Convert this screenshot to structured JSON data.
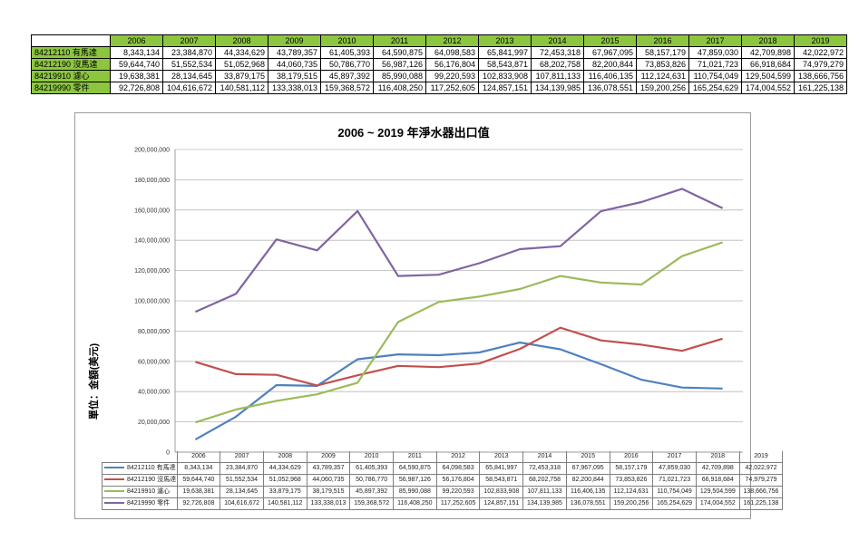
{
  "chart_data": {
    "type": "line",
    "title": "2006 ~ 2019 年淨水器出口值",
    "ylabel": "單位：金額(美元)",
    "xlabel": "",
    "ylim": [
      0,
      200000000
    ],
    "yticks": [
      "200,000,000",
      "180,000,000",
      "160,000,000",
      "140,000,000",
      "120,000,000",
      "100,000,000",
      "80,000,000",
      "60,000,000",
      "40,000,000",
      "20,000,000",
      "0"
    ],
    "grid": true,
    "legend": "data-table-below",
    "categories": [
      "2006",
      "2007",
      "2008",
      "2009",
      "2010",
      "2011",
      "2012",
      "2013",
      "2014",
      "2015",
      "2016",
      "2017",
      "2018",
      "2019"
    ],
    "series": [
      {
        "name": "84212110 有馬達",
        "color": "#4f81bd",
        "values": [
          8343134,
          23384870,
          44334629,
          43789357,
          61405393,
          64590875,
          64098583,
          65841997,
          72453318,
          67967095,
          58157179,
          47859030,
          42709898,
          42022972
        ],
        "labels": [
          "8,343,134",
          "23,384,870",
          "44,334,629",
          "43,789,357",
          "61,405,393",
          "64,590,875",
          "64,098,583",
          "65,841,997",
          "72,453,318",
          "67,967,095",
          "58,157,179",
          "47,859,030",
          "42,709,898",
          "42,022,972"
        ]
      },
      {
        "name": "84212190 沒馬達",
        "color": "#c0504d",
        "values": [
          59644740,
          51552534,
          51052968,
          44060735,
          50786770,
          56987126,
          56176804,
          58543871,
          68202758,
          82200844,
          73853826,
          71021723,
          66918684,
          74979279
        ],
        "labels": [
          "59,644,740",
          "51,552,534",
          "51,052,968",
          "44,060,735",
          "50,786,770",
          "56,987,126",
          "56,176,804",
          "58,543,871",
          "68,202,758",
          "82,200,844",
          "73,853,826",
          "71,021,723",
          "66,918,684",
          "74,979,279"
        ]
      },
      {
        "name": "84219910 濾心",
        "color": "#9bbb59",
        "values": [
          19638381,
          28134645,
          33879175,
          38179515,
          45897392,
          85990088,
          99220593,
          102833908,
          107811133,
          116406135,
          112124631,
          110754049,
          129504599,
          138666756
        ],
        "labels": [
          "19,638,381",
          "28,134,645",
          "33,879,175",
          "38,179,515",
          "45,897,392",
          "85,990,088",
          "99,220,593",
          "102,833,908",
          "107,811,133",
          "116,406,135",
          "112,124,631",
          "110,754,049",
          "129,504,599",
          "138,666,756"
        ]
      },
      {
        "name": "84219990 零件",
        "color": "#8064a2",
        "values": [
          92726808,
          104616672,
          140581112,
          133338013,
          159368572,
          116408250,
          117252605,
          124857151,
          134139985,
          136078551,
          159200256,
          165254629,
          174004552,
          161225138
        ],
        "labels": [
          "92,726,808",
          "104,616,672",
          "140,581,112",
          "133,338,013",
          "159,368,572",
          "116,408,250",
          "117,252,605",
          "124,857,151",
          "134,139,985",
          "136,078,551",
          "159,200,256",
          "165,254,629",
          "174,004,552",
          "161,225,138"
        ]
      }
    ]
  }
}
